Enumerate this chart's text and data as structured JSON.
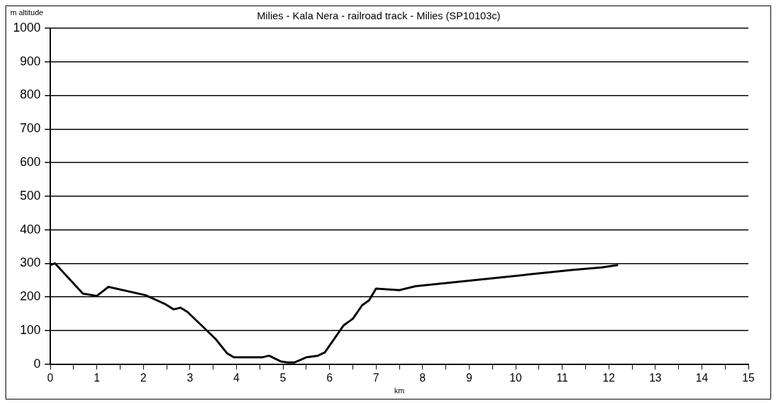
{
  "chart_data": {
    "type": "line",
    "title": "Milies - Kala Nera - railroad track - Milies (SP10103c)",
    "xlabel": "km",
    "ylabel": "m altitude",
    "x": [
      0,
      0.1,
      0.7,
      1.0,
      1.25,
      2.05,
      2.45,
      2.65,
      2.8,
      2.95,
      3.55,
      3.8,
      3.95,
      4.3,
      4.55,
      4.7,
      4.95,
      5.1,
      5.25,
      5.5,
      5.75,
      5.9,
      6.1,
      6.3,
      6.5,
      6.7,
      6.85,
      7.0,
      7.5,
      7.85,
      11.2,
      11.85,
      11.95,
      12.2
    ],
    "series": [
      {
        "color": "#000000",
        "values": [
          295,
          300,
          210,
          203,
          230,
          205,
          180,
          163,
          168,
          155,
          75,
          32,
          20,
          20,
          20,
          25,
          8,
          5,
          5,
          20,
          25,
          35,
          75,
          115,
          135,
          175,
          190,
          225,
          220,
          232,
          280,
          288,
          290,
          295
        ]
      }
    ],
    "xlim": [
      0,
      15
    ],
    "xticks": [
      0,
      {
        "value": 0.5,
        "label": null
      },
      1,
      {
        "value": 1.5,
        "label": null
      },
      2,
      {
        "value": 2.5,
        "label": null
      },
      3,
      {
        "value": 3.5,
        "label": null
      },
      4,
      {
        "value": 4.5,
        "label": null
      },
      5,
      {
        "value": 5.5,
        "label": null
      },
      6,
      {
        "value": 6.5,
        "label": null
      },
      7,
      {
        "value": 7.5,
        "label": null
      },
      8,
      {
        "value": 8.5,
        "label": null
      },
      9,
      {
        "value": 9.5,
        "label": null
      },
      10,
      {
        "value": 10.5,
        "label": null
      },
      11,
      {
        "value": 11.5,
        "label": null
      },
      12,
      {
        "value": 12.5,
        "label": null
      },
      13,
      {
        "value": 13.5,
        "label": null
      },
      14,
      {
        "value": 14.5,
        "label": null
      },
      15
    ],
    "ylim": [
      0,
      1000
    ],
    "yticks": [
      0,
      100,
      200,
      300,
      400,
      500,
      600,
      700,
      800,
      900,
      1000
    ],
    "grid": "y",
    "legend": false,
    "marker": "none",
    "line_style": "solid"
  }
}
